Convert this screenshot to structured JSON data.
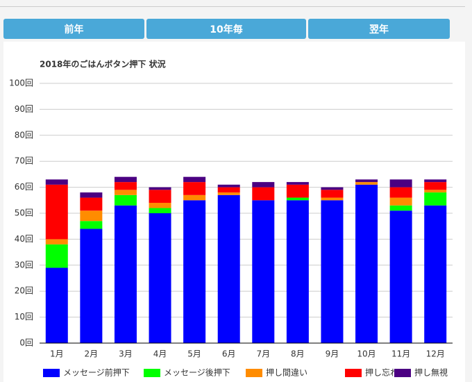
{
  "buttons": [
    "前年",
    "10年毎",
    "翌年"
  ],
  "chart_data": {
    "type": "stacked-bar",
    "title": "2018年のごはんボタン押下 状況",
    "categories": [
      "1月",
      "2月",
      "3月",
      "4月",
      "5月",
      "6月",
      "7月",
      "8月",
      "9月",
      "10月",
      "11月",
      "12月"
    ],
    "series": [
      {
        "name": "メッセージ前押下",
        "color": "#0000ff",
        "values": [
          29,
          44,
          53,
          50,
          55,
          57,
          55,
          55,
          55,
          61,
          51,
          53
        ]
      },
      {
        "name": "メッセージ後押下",
        "color": "#00ff00",
        "values": [
          9,
          3,
          4,
          2,
          0,
          0,
          0,
          1,
          0,
          0,
          2,
          5
        ]
      },
      {
        "name": "押し間違い",
        "color": "#ff8c00",
        "values": [
          2,
          4,
          2,
          2,
          2,
          1,
          0,
          0,
          1,
          1,
          3,
          1
        ]
      },
      {
        "name": "押し忘れ",
        "color": "#ff0000",
        "values": [
          21,
          5,
          3,
          5,
          5,
          2,
          5,
          5,
          3,
          0,
          4,
          3
        ]
      },
      {
        "name": "押し無視",
        "color": "#4b0082",
        "values": [
          2,
          2,
          2,
          1,
          2,
          1,
          2,
          1,
          1,
          1,
          3,
          1
        ]
      }
    ],
    "ylim": [
      0,
      100
    ],
    "yticks": [
      {
        "value": 0,
        "label": "0回"
      },
      {
        "value": 10,
        "label": "10回"
      },
      {
        "value": 20,
        "label": "20回"
      },
      {
        "value": 30,
        "label": "30回"
      },
      {
        "value": 40,
        "label": "40回"
      },
      {
        "value": 50,
        "label": "50回"
      },
      {
        "value": 60,
        "label": "60回"
      },
      {
        "value": 70,
        "label": "70回"
      },
      {
        "value": 80,
        "label": "80回"
      },
      {
        "value": 90,
        "label": "90回"
      },
      {
        "value": 100,
        "label": "100回"
      }
    ],
    "grid": true,
    "legend": "bottom"
  }
}
